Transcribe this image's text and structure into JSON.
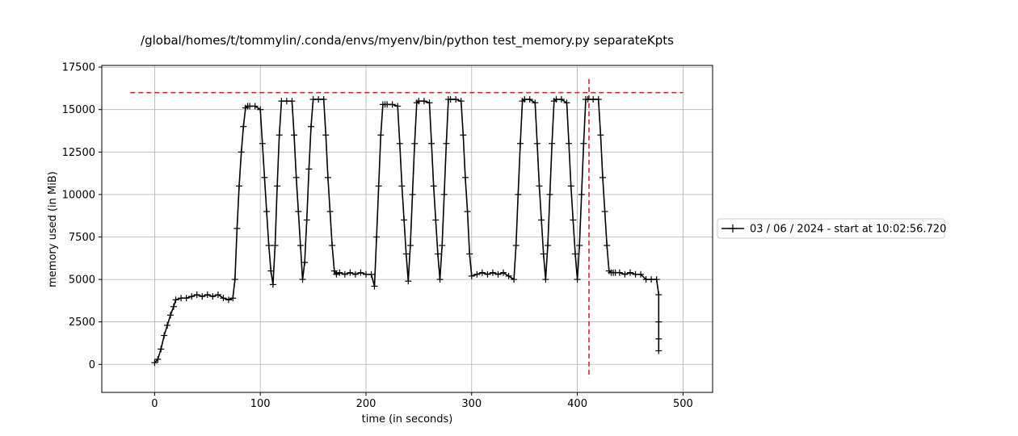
{
  "chart_data": {
    "type": "line",
    "title": "/global/homes/t/tommylin/.conda/envs/myenv/bin/python test_memory.py separateKpts",
    "xlabel": "time (in seconds)",
    "ylabel": "memory used (in MiB)",
    "xlim": [
      -50,
      528
    ],
    "ylim": [
      -1650,
      17600
    ],
    "xticks": [
      0,
      100,
      200,
      300,
      400,
      500
    ],
    "yticks": [
      0,
      2500,
      5000,
      7500,
      10000,
      12500,
      15000,
      17500
    ],
    "xtick_labels": [
      "0",
      "100",
      "200",
      "300",
      "400",
      "500"
    ],
    "ytick_labels": [
      "0",
      "2500",
      "5000",
      "7500",
      "10000",
      "12500",
      "15000",
      "17500"
    ],
    "grid": true,
    "legend_position": "right, outside plot",
    "series": [
      {
        "name": "03 / 06 / 2024 - start at 10:02:56.720",
        "color": "#000000",
        "marker": "+",
        "x": [
          0,
          3,
          6,
          9,
          12,
          15,
          18,
          20,
          25,
          30,
          35,
          40,
          45,
          50,
          55,
          60,
          65,
          70,
          74,
          76,
          78,
          80,
          82,
          84,
          86,
          88,
          90,
          95,
          100,
          102,
          104,
          106,
          108,
          110,
          112,
          114,
          116,
          118,
          120,
          125,
          130,
          132,
          134,
          136,
          138,
          140,
          142,
          144,
          146,
          148,
          150,
          155,
          160,
          162,
          164,
          166,
          168,
          170,
          172,
          175,
          180,
          185,
          190,
          195,
          200,
          205,
          208,
          210,
          212,
          214,
          216,
          218,
          220,
          225,
          230,
          232,
          234,
          236,
          238,
          240,
          242,
          244,
          246,
          248,
          250,
          255,
          260,
          262,
          264,
          266,
          268,
          270,
          272,
          274,
          276,
          278,
          280,
          285,
          290,
          292,
          294,
          296,
          298,
          300,
          305,
          310,
          315,
          320,
          325,
          330,
          335,
          340,
          342,
          344,
          346,
          348,
          350,
          355,
          360,
          362,
          364,
          366,
          368,
          370,
          372,
          374,
          376,
          378,
          380,
          385,
          390,
          392,
          394,
          396,
          398,
          400,
          402,
          404,
          406,
          408,
          410,
          415,
          420,
          422,
          424,
          426,
          428,
          430,
          432,
          434,
          436,
          440,
          445,
          450,
          455,
          460,
          465,
          470,
          475,
          477,
          477,
          477,
          477
        ],
        "y": [
          100,
          300,
          900,
          1700,
          2300,
          2900,
          3400,
          3800,
          3900,
          3900,
          4000,
          4100,
          4000,
          4100,
          4000,
          4100,
          3900,
          3800,
          3900,
          5000,
          8000,
          10500,
          12500,
          14000,
          15100,
          15200,
          15200,
          15200,
          15000,
          13000,
          11000,
          9000,
          7000,
          5500,
          4700,
          7000,
          10500,
          13500,
          15500,
          15500,
          15500,
          13500,
          11000,
          9000,
          7000,
          5000,
          6000,
          8500,
          11500,
          14000,
          15600,
          15600,
          15600,
          13500,
          11000,
          9000,
          7000,
          5500,
          5300,
          5400,
          5300,
          5400,
          5300,
          5400,
          5300,
          5300,
          4600,
          7500,
          10500,
          13500,
          15300,
          15300,
          15300,
          15300,
          15200,
          13000,
          10500,
          8500,
          6500,
          4900,
          7000,
          10000,
          13000,
          15400,
          15500,
          15500,
          15400,
          13000,
          10500,
          8500,
          6500,
          5000,
          7000,
          10000,
          13000,
          15600,
          15600,
          15600,
          15500,
          13500,
          11000,
          9000,
          6500,
          5200,
          5300,
          5400,
          5300,
          5400,
          5300,
          5400,
          5200,
          5000,
          7000,
          10000,
          13000,
          15500,
          15600,
          15600,
          15400,
          13000,
          10500,
          8500,
          6500,
          5000,
          7000,
          10000,
          13000,
          15500,
          15600,
          15600,
          15400,
          13000,
          10500,
          8500,
          6500,
          5000,
          7000,
          10000,
          13000,
          15600,
          15600,
          15600,
          15600,
          13500,
          11000,
          9000,
          7000,
          5500,
          5400,
          5400,
          5400,
          5400,
          5300,
          5400,
          5300,
          5300,
          5000,
          5000,
          5000,
          4100,
          2500,
          1500,
          800
        ]
      }
    ],
    "reference_lines": [
      {
        "orientation": "horizontal",
        "value": 16000,
        "x_range": [
          -23,
          500
        ],
        "color": "#d62728",
        "style": "dashed"
      },
      {
        "orientation": "vertical",
        "value": 411,
        "y_range": [
          -800,
          16800
        ],
        "color": "#d62728",
        "style": "dashed"
      }
    ]
  }
}
